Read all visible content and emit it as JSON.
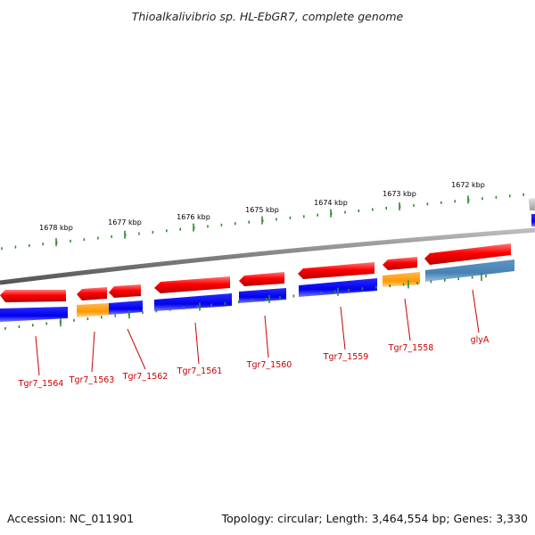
{
  "title": "Thioalkalivibrio sp. HL-EbGR7, complete genome",
  "footer": {
    "accession": "Accession: NC_011901",
    "summary": "Topology: circular; Length: 3,464,554 bp; Genes: 3,330"
  },
  "kbp_labels": [
    "1678 kbp",
    "1677 kbp",
    "1676 kbp",
    "1675 kbp",
    "1674 kbp",
    "1673 kbp",
    "1672 kbp"
  ],
  "gene_labels": [
    "Tgr7_1564",
    "Tgr7_1563",
    "Tgr7_1562",
    "Tgr7_1561",
    "Tgr7_1560",
    "Tgr7_1559",
    "Tgr7_1558",
    "glyA"
  ],
  "colors": {
    "cds_forward": "#ff0000",
    "cds_reverse_track": "#0000ee",
    "category_orange": "#ff9900",
    "category_steelblue": "#4682b4",
    "backbone": "#808080",
    "ticks": "#2e8b2e",
    "label_text": "#cc0000",
    "leader_line": "#cc0000"
  }
}
